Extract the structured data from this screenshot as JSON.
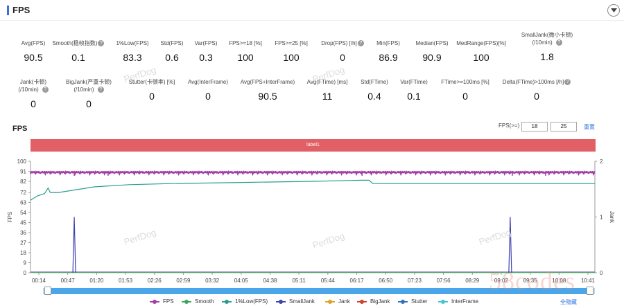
{
  "header": {
    "title": "FPS"
  },
  "stats_row1": [
    {
      "label": "Avg(FPS)",
      "value": "90.5",
      "help": false
    },
    {
      "label": "Smooth(稳帧指数)",
      "value": "0.1",
      "help": true
    },
    {
      "label": "1%Low(FPS)",
      "value": "83.3",
      "help": false
    },
    {
      "label": "Std(FPS)",
      "value": "0.6",
      "help": false
    },
    {
      "label": "Var(FPS)",
      "value": "0.3",
      "help": false
    },
    {
      "label": "FPS>=18 [%]",
      "value": "100",
      "help": false
    },
    {
      "label": "FPS>=25 [%]",
      "value": "100",
      "help": false
    },
    {
      "label": "Drop(FPS) [/h]",
      "value": "0",
      "help": true
    },
    {
      "label": "Min(FPS)",
      "value": "86.9",
      "help": false
    },
    {
      "label": "Median(FPS)",
      "value": "90.9",
      "help": false
    },
    {
      "label": "MedRange(FPS)[%]",
      "value": "100",
      "help": false
    },
    {
      "label": "SmallJank(微小卡顿)",
      "label2": "(/10min)",
      "value": "1.8",
      "help": true
    }
  ],
  "stats_row2": [
    {
      "label": "Jank(卡顿)",
      "label2": "(/10min)",
      "value": "0",
      "help": true
    },
    {
      "label": "BigJank(严重卡顿)",
      "label2": "(/10min)",
      "value": "0",
      "help": true
    },
    {
      "label": "Stutter(卡顿率) [%]",
      "value": "0",
      "help": false
    },
    {
      "label": "Avg(InterFrame)",
      "value": "0",
      "help": false
    },
    {
      "label": "Avg(FPS+InterFrame)",
      "value": "90.5",
      "help": false
    },
    {
      "label": "Avg(FTime) [ms]",
      "value": "11",
      "help": false
    },
    {
      "label": "Std(FTime)",
      "value": "0.4",
      "help": false
    },
    {
      "label": "Var(FTime)",
      "value": "0.1",
      "help": false
    },
    {
      "label": "FTime>=100ms [%]",
      "value": "0",
      "help": false
    },
    {
      "label": "Delta(FTime)>100ms [/h]",
      "value": "0",
      "help": true
    }
  ],
  "chart_section": {
    "title": "FPS",
    "fps_label": "FPS(>=)",
    "fps_threshold_1": "18",
    "fps_threshold_2": "25",
    "reset_label": "重置",
    "label_bar": "label1",
    "hide_all_label": "全隐藏"
  },
  "watermarks": {
    "app": "PerfDog",
    "site": "58codes"
  },
  "chart_data": {
    "type": "line",
    "ylabel": "FPS",
    "y2label": "Jank",
    "yticks": [
      0,
      9,
      18,
      27,
      36,
      45,
      54,
      63,
      72,
      82,
      91,
      100
    ],
    "y2ticks": [
      0,
      1,
      2
    ],
    "ylim": [
      0,
      100
    ],
    "y2lim": [
      0,
      2
    ],
    "xticks": [
      "00:14",
      "00:47",
      "01:20",
      "01:53",
      "02:26",
      "02:59",
      "03:32",
      "04:05",
      "04:38",
      "05:11",
      "05:44",
      "06:17",
      "06:50",
      "07:23",
      "07:56",
      "08:29",
      "09:02",
      "09:35",
      "10:08",
      "10:41"
    ],
    "series": [
      {
        "name": "FPS",
        "color": "#a23fa6",
        "axis": "left",
        "description_points": [
          [
            0,
            90
          ],
          [
            400,
            90.5
          ],
          [
            800,
            90
          ]
        ]
      },
      {
        "name": "Smooth",
        "color": "#3aa65a",
        "axis": "left",
        "points": [
          [
            0,
            0.3
          ],
          [
            800,
            0.3
          ]
        ]
      },
      {
        "name": "1%Low(FPS)",
        "color": "#2a9d8f",
        "axis": "left",
        "points": [
          [
            0,
            65
          ],
          [
            10,
            69
          ],
          [
            20,
            71
          ],
          [
            25,
            76
          ],
          [
            28,
            72
          ],
          [
            40,
            72
          ],
          [
            60,
            74
          ],
          [
            90,
            77
          ],
          [
            140,
            79
          ],
          [
            200,
            80
          ],
          [
            300,
            81
          ],
          [
            400,
            82
          ],
          [
            470,
            83
          ],
          [
            480,
            83
          ],
          [
            485,
            80
          ],
          [
            560,
            80
          ],
          [
            650,
            80
          ],
          [
            730,
            80
          ],
          [
            775,
            80
          ],
          [
            800,
            80
          ]
        ]
      },
      {
        "name": "SmallJank",
        "color": "#4040b0",
        "axis": "right",
        "spikes": [
          [
            62,
            1
          ],
          [
            680,
            1
          ]
        ]
      },
      {
        "name": "Jank",
        "color": "#e0a020",
        "axis": "right",
        "points": []
      },
      {
        "name": "BigJank",
        "color": "#d04030",
        "axis": "right",
        "points": []
      },
      {
        "name": "Stutter",
        "color": "#3070c0",
        "axis": "right",
        "points": []
      },
      {
        "name": "InterFrame",
        "color": "#40c8d0",
        "axis": "left",
        "points": []
      }
    ],
    "legend_position": "bottom"
  }
}
